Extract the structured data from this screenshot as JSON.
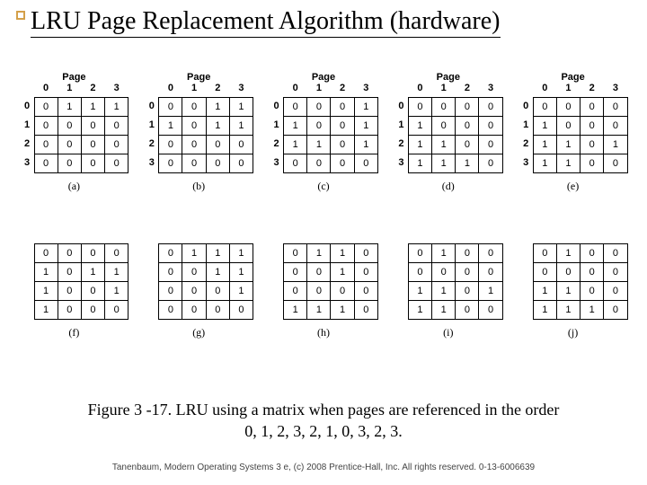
{
  "title": "LRU Page Replacement Algorithm (hardware)",
  "accent_color": "#d4a04a",
  "page_label": "Page",
  "col_headers": [
    "0",
    "1",
    "2",
    "3"
  ],
  "row_headers": [
    "0",
    "1",
    "2",
    "3"
  ],
  "matrices": [
    {
      "label": "(a)",
      "show_full_header": true,
      "data": [
        [
          "0",
          "1",
          "1",
          "1"
        ],
        [
          "0",
          "0",
          "0",
          "0"
        ],
        [
          "0",
          "0",
          "0",
          "0"
        ],
        [
          "0",
          "0",
          "0",
          "0"
        ]
      ]
    },
    {
      "label": "(b)",
      "show_full_header": true,
      "data": [
        [
          "0",
          "0",
          "1",
          "1"
        ],
        [
          "1",
          "0",
          "1",
          "1"
        ],
        [
          "0",
          "0",
          "0",
          "0"
        ],
        [
          "0",
          "0",
          "0",
          "0"
        ]
      ]
    },
    {
      "label": "(c)",
      "show_full_header": true,
      "data": [
        [
          "0",
          "0",
          "0",
          "1"
        ],
        [
          "1",
          "0",
          "0",
          "1"
        ],
        [
          "1",
          "1",
          "0",
          "1"
        ],
        [
          "0",
          "0",
          "0",
          "0"
        ]
      ]
    },
    {
      "label": "(d)",
      "show_full_header": true,
      "data": [
        [
          "0",
          "0",
          "0",
          "0"
        ],
        [
          "1",
          "0",
          "0",
          "0"
        ],
        [
          "1",
          "1",
          "0",
          "0"
        ],
        [
          "1",
          "1",
          "1",
          "0"
        ]
      ]
    },
    {
      "label": "(e)",
      "show_full_header": true,
      "data": [
        [
          "0",
          "0",
          "0",
          "0"
        ],
        [
          "1",
          "0",
          "0",
          "0"
        ],
        [
          "1",
          "1",
          "0",
          "1"
        ],
        [
          "1",
          "1",
          "0",
          "0"
        ]
      ]
    },
    {
      "label": "(f)",
      "show_full_header": false,
      "data": [
        [
          "0",
          "0",
          "0",
          "0"
        ],
        [
          "1",
          "0",
          "1",
          "1"
        ],
        [
          "1",
          "0",
          "0",
          "1"
        ],
        [
          "1",
          "0",
          "0",
          "0"
        ]
      ]
    },
    {
      "label": "(g)",
      "show_full_header": false,
      "data": [
        [
          "0",
          "1",
          "1",
          "1"
        ],
        [
          "0",
          "0",
          "1",
          "1"
        ],
        [
          "0",
          "0",
          "0",
          "1"
        ],
        [
          "0",
          "0",
          "0",
          "0"
        ]
      ]
    },
    {
      "label": "(h)",
      "show_full_header": false,
      "data": [
        [
          "0",
          "1",
          "1",
          "0"
        ],
        [
          "0",
          "0",
          "1",
          "0"
        ],
        [
          "0",
          "0",
          "0",
          "0"
        ],
        [
          "1",
          "1",
          "1",
          "0"
        ]
      ]
    },
    {
      "label": "(i)",
      "show_full_header": false,
      "data": [
        [
          "0",
          "1",
          "0",
          "0"
        ],
        [
          "0",
          "0",
          "0",
          "0"
        ],
        [
          "1",
          "1",
          "0",
          "1"
        ],
        [
          "1",
          "1",
          "0",
          "0"
        ]
      ]
    },
    {
      "label": "(j)",
      "show_full_header": false,
      "data": [
        [
          "0",
          "1",
          "0",
          "0"
        ],
        [
          "0",
          "0",
          "0",
          "0"
        ],
        [
          "1",
          "1",
          "0",
          "0"
        ],
        [
          "1",
          "1",
          "1",
          "0"
        ]
      ]
    }
  ],
  "caption_line1": "Figure 3 -17. LRU using a matrix when pages are referenced in the order",
  "caption_line2": "0, 1, 2, 3, 2, 1, 0, 3, 2, 3.",
  "footer": "Tanenbaum, Modern Operating Systems 3 e, (c) 2008 Prentice-Hall, Inc. All rights reserved. 0-13-6006639"
}
